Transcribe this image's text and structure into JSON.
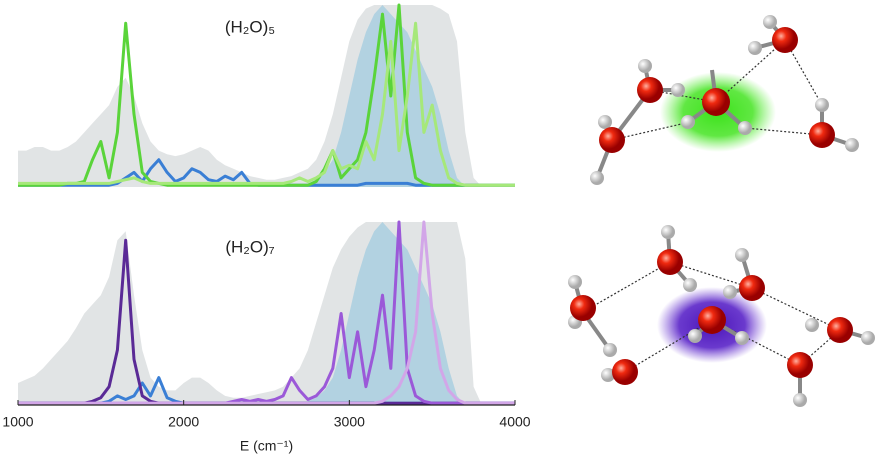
{
  "chart_data": [
    {
      "type": "line",
      "title": "(H₂O)₅",
      "xlim": [
        1000,
        4000
      ],
      "ylim": [
        0,
        1
      ],
      "x": [
        1000,
        1050,
        1100,
        1150,
        1200,
        1250,
        1300,
        1350,
        1400,
        1450,
        1500,
        1550,
        1600,
        1650,
        1700,
        1750,
        1800,
        1850,
        1900,
        1950,
        2000,
        2050,
        2100,
        2150,
        2200,
        2250,
        2300,
        2350,
        2400,
        2450,
        2500,
        2550,
        2600,
        2650,
        2700,
        2750,
        2800,
        2850,
        2900,
        2950,
        3000,
        3050,
        3100,
        3150,
        3200,
        3250,
        3300,
        3350,
        3400,
        3450,
        3500,
        3550,
        3600,
        3650,
        3700,
        3750,
        3800,
        3850,
        3900,
        3950,
        4000
      ],
      "series": [
        {
          "style": "area",
          "color": "#dcdfe1",
          "values": [
            0.2,
            0.2,
            0.22,
            0.22,
            0.2,
            0.2,
            0.22,
            0.25,
            0.3,
            0.35,
            0.4,
            0.45,
            0.55,
            0.6,
            0.5,
            0.35,
            0.25,
            0.2,
            0.18,
            0.17,
            0.18,
            0.2,
            0.22,
            0.2,
            0.15,
            0.12,
            0.1,
            0.08,
            0.06,
            0.05,
            0.04,
            0.04,
            0.05,
            0.06,
            0.08,
            0.1,
            0.15,
            0.25,
            0.4,
            0.6,
            0.8,
            0.92,
            0.98,
            1,
            1,
            1,
            1,
            1,
            1,
            1,
            1,
            0.98,
            0.95,
            0.8,
            0.3,
            0.05,
            0,
            0,
            0,
            0,
            0
          ]
        },
        {
          "style": "area",
          "color": "#a9cfe0",
          "values": [
            0,
            0,
            0,
            0,
            0,
            0,
            0,
            0,
            0,
            0,
            0,
            0,
            0,
            0,
            0,
            0,
            0,
            0,
            0,
            0,
            0,
            0,
            0,
            0,
            0,
            0,
            0,
            0,
            0,
            0,
            0,
            0,
            0,
            0,
            0,
            0.02,
            0.04,
            0.08,
            0.15,
            0.3,
            0.5,
            0.7,
            0.85,
            0.95,
            1,
            0.95,
            0.9,
            0.85,
            0.75,
            0.65,
            0.55,
            0.4,
            0.2,
            0.05,
            0,
            0,
            0,
            0,
            0,
            0,
            0
          ]
        },
        {
          "style": "line",
          "color": "#3a7fd5",
          "values": [
            0.01,
            0.01,
            0.01,
            0.01,
            0.01,
            0.01,
            0.01,
            0.01,
            0.01,
            0.01,
            0.01,
            0.01,
            0.02,
            0.05,
            0.08,
            0.03,
            0.1,
            0.15,
            0.08,
            0.03,
            0.05,
            0.1,
            0.08,
            0.04,
            0.03,
            0.06,
            0.04,
            0.08,
            0.02,
            0.01,
            0.01,
            0.01,
            0.01,
            0.01,
            0.01,
            0.01,
            0.01,
            0.01,
            0.01,
            0.01,
            0.01,
            0.01,
            0.02,
            0.02,
            0.02,
            0.02,
            0.02,
            0.02,
            0.01,
            0.01,
            0.01,
            0.01,
            0.01,
            0.01,
            0.01,
            0.01,
            0.01,
            0.01,
            0.01,
            0.01,
            0.01
          ]
        },
        {
          "style": "line",
          "color": "#5ad43a",
          "values": [
            0.01,
            0.01,
            0.01,
            0.01,
            0.01,
            0.01,
            0.02,
            0.02,
            0.03,
            0.15,
            0.25,
            0.05,
            0.3,
            0.9,
            0.4,
            0.08,
            0.03,
            0.02,
            0.01,
            0.01,
            0.01,
            0.01,
            0.01,
            0.01,
            0.01,
            0.01,
            0.01,
            0.01,
            0.01,
            0.01,
            0.01,
            0.01,
            0.01,
            0.01,
            0.01,
            0.01,
            0.03,
            0.1,
            0.2,
            0.05,
            0.1,
            0.15,
            0.3,
            0.6,
            0.95,
            0.5,
            1,
            0.3,
            0.05,
            0.02,
            0.01,
            0.01,
            0.01,
            0.01,
            0.01,
            0.01,
            0.01,
            0.01,
            0.01,
            0.01,
            0.01
          ]
        },
        {
          "style": "line",
          "color": "#a6e87a",
          "values": [
            0.02,
            0.02,
            0.02,
            0.02,
            0.02,
            0.02,
            0.02,
            0.02,
            0.02,
            0.02,
            0.02,
            0.02,
            0.03,
            0.04,
            0.05,
            0.03,
            0.02,
            0.02,
            0.02,
            0.02,
            0.02,
            0.02,
            0.02,
            0.02,
            0.02,
            0.02,
            0.02,
            0.02,
            0.02,
            0.02,
            0.02,
            0.02,
            0.02,
            0.03,
            0.05,
            0.03,
            0.05,
            0.08,
            0.2,
            0.1,
            0.12,
            0.1,
            0.25,
            0.15,
            0.4,
            0.8,
            0.2,
            0.5,
            0.9,
            0.3,
            0.45,
            0.2,
            0.05,
            0.02,
            0.01,
            0.01,
            0.01,
            0.01,
            0.01,
            0.01,
            0.01
          ]
        }
      ]
    },
    {
      "type": "line",
      "title": "(H₂O)₇",
      "xlabel": "E (cm⁻¹)",
      "xlim": [
        1000,
        4000
      ],
      "ylim": [
        0,
        1
      ],
      "xticks": [
        1000,
        2000,
        3000,
        4000
      ],
      "x": [
        1000,
        1050,
        1100,
        1150,
        1200,
        1250,
        1300,
        1350,
        1400,
        1450,
        1500,
        1550,
        1600,
        1650,
        1700,
        1750,
        1800,
        1850,
        1900,
        1950,
        2000,
        2050,
        2100,
        2150,
        2200,
        2250,
        2300,
        2350,
        2400,
        2450,
        2500,
        2550,
        2600,
        2650,
        2700,
        2750,
        2800,
        2850,
        2900,
        2950,
        3000,
        3050,
        3100,
        3150,
        3200,
        3250,
        3300,
        3350,
        3400,
        3450,
        3500,
        3550,
        3600,
        3650,
        3700,
        3750,
        3800,
        3850,
        3900,
        3950,
        4000
      ],
      "series": [
        {
          "style": "area",
          "color": "#dcdfe1",
          "values": [
            0.12,
            0.14,
            0.16,
            0.2,
            0.25,
            0.3,
            0.35,
            0.42,
            0.5,
            0.55,
            0.6,
            0.7,
            0.9,
            0.95,
            0.6,
            0.3,
            0.15,
            0.1,
            0.08,
            0.08,
            0.12,
            0.15,
            0.15,
            0.12,
            0.08,
            0.05,
            0.04,
            0.04,
            0.05,
            0.06,
            0.07,
            0.08,
            0.1,
            0.15,
            0.2,
            0.3,
            0.45,
            0.6,
            0.75,
            0.85,
            0.92,
            0.97,
            1,
            1,
            1,
            1,
            1,
            1,
            1,
            1,
            1,
            1,
            1,
            1,
            0.8,
            0.1,
            0,
            0,
            0,
            0,
            0
          ]
        },
        {
          "style": "area",
          "color": "#a9cfe0",
          "values": [
            0,
            0,
            0,
            0,
            0,
            0,
            0,
            0,
            0,
            0,
            0,
            0,
            0,
            0,
            0,
            0,
            0,
            0,
            0,
            0,
            0,
            0,
            0,
            0,
            0,
            0,
            0,
            0,
            0,
            0,
            0,
            0,
            0,
            0,
            0,
            0.02,
            0.04,
            0.08,
            0.15,
            0.3,
            0.5,
            0.7,
            0.85,
            0.95,
            1,
            0.95,
            0.9,
            0.85,
            0.75,
            0.65,
            0.55,
            0.4,
            0.2,
            0.05,
            0,
            0,
            0,
            0,
            0,
            0,
            0
          ]
        },
        {
          "style": "line",
          "color": "#3a7fd5",
          "values": [
            0.01,
            0.01,
            0.01,
            0.01,
            0.01,
            0.01,
            0.01,
            0.01,
            0.01,
            0.01,
            0.01,
            0.02,
            0.05,
            0.03,
            0.05,
            0.12,
            0.05,
            0.15,
            0.04,
            0.02,
            0.01,
            0.01,
            0.01,
            0.01,
            0.01,
            0.01,
            0.01,
            0.01,
            0.01,
            0.01,
            0.01,
            0.01,
            0.01,
            0.01,
            0.01,
            0.01,
            0.01,
            0.01,
            0.01,
            0.01,
            0.01,
            0.01,
            0.01,
            0.01,
            0.01,
            0.01,
            0.01,
            0.01,
            0.01,
            0.01,
            0.01,
            0.01,
            0.01,
            0.01,
            0.01,
            0.01,
            0.01,
            0.01,
            0.01,
            0.01,
            0.01
          ]
        },
        {
          "style": "line",
          "color": "#5a2a96",
          "values": [
            0.01,
            0.01,
            0.01,
            0.01,
            0.01,
            0.01,
            0.01,
            0.01,
            0.01,
            0.02,
            0.04,
            0.1,
            0.3,
            0.9,
            0.25,
            0.05,
            0.02,
            0.01,
            0.01,
            0.01,
            0.01,
            0.01,
            0.01,
            0.01,
            0.01,
            0.01,
            0.01,
            0.01,
            0.01,
            0.01,
            0.01,
            0.01,
            0.01,
            0.01,
            0.01,
            0.01,
            0.01,
            0.01,
            0.01,
            0.01,
            0.01,
            0.01,
            0.01,
            0.01,
            0.01,
            0.01,
            0.01,
            0.01,
            0.01,
            0.01,
            0.01,
            0.01,
            0.01,
            0.01,
            0.01,
            0.01,
            0.01,
            0.01,
            0.01,
            0.01,
            0.01
          ]
        },
        {
          "style": "line",
          "color": "#9b59d8",
          "values": [
            0.01,
            0.01,
            0.01,
            0.01,
            0.01,
            0.01,
            0.01,
            0.01,
            0.01,
            0.01,
            0.01,
            0.01,
            0.01,
            0.01,
            0.01,
            0.01,
            0.01,
            0.01,
            0.01,
            0.01,
            0.01,
            0.01,
            0.01,
            0.01,
            0.01,
            0.01,
            0.02,
            0.03,
            0.02,
            0.03,
            0.02,
            0.03,
            0.05,
            0.15,
            0.08,
            0.03,
            0.05,
            0.1,
            0.2,
            0.5,
            0.15,
            0.4,
            0.1,
            0.3,
            0.6,
            0.2,
            1,
            0.2,
            0.05,
            0.02,
            0.01,
            0.01,
            0.01,
            0.01,
            0.01,
            0.01,
            0.01,
            0.01,
            0.01,
            0.01,
            0.01
          ]
        },
        {
          "style": "line",
          "color": "#d2a6e8",
          "values": [
            0.01,
            0.01,
            0.01,
            0.01,
            0.01,
            0.01,
            0.01,
            0.01,
            0.01,
            0.01,
            0.01,
            0.01,
            0.01,
            0.01,
            0.01,
            0.01,
            0.01,
            0.01,
            0.01,
            0.01,
            0.01,
            0.01,
            0.01,
            0.01,
            0.01,
            0.01,
            0.01,
            0.01,
            0.01,
            0.01,
            0.01,
            0.01,
            0.01,
            0.01,
            0.01,
            0.01,
            0.01,
            0.01,
            0.01,
            0.01,
            0.01,
            0.01,
            0.01,
            0.01,
            0.02,
            0.05,
            0.1,
            0.2,
            0.4,
            1,
            0.5,
            0.2,
            0.08,
            0.03,
            0.01,
            0.01,
            0.01,
            0.01,
            0.01,
            0.01,
            0.01
          ]
        }
      ]
    }
  ]
}
